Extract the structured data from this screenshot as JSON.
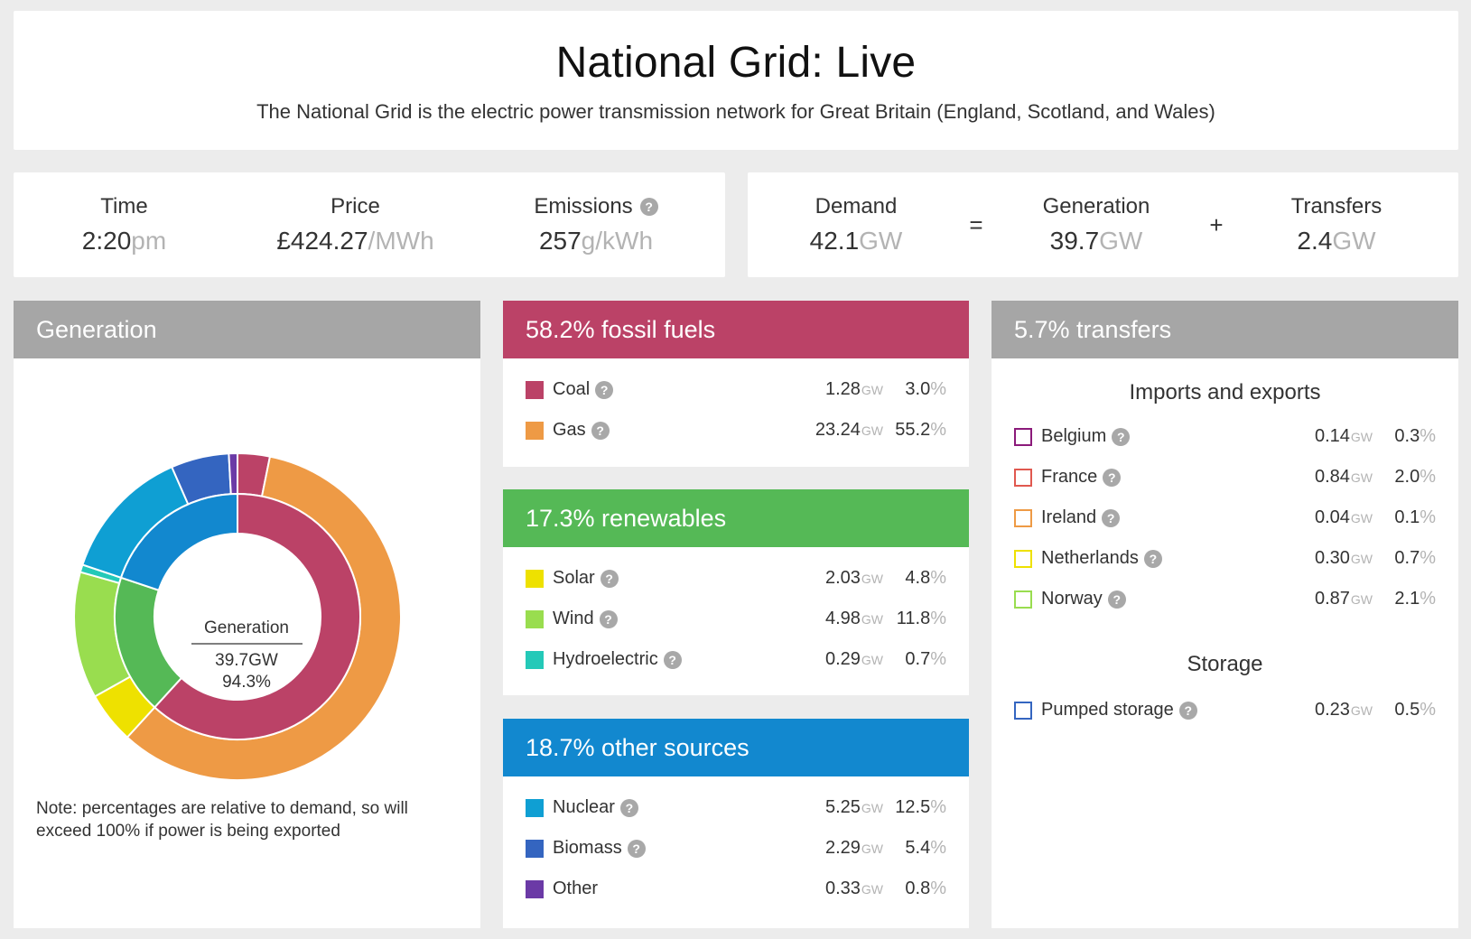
{
  "header": {
    "title": "National Grid: Live",
    "subtitle": "The National Grid is the electric power transmission network for Great Britain (England, Scotland, and Wales)"
  },
  "stats": {
    "time": {
      "label": "Time",
      "value": "2:20",
      "unit": "pm"
    },
    "price": {
      "label": "Price",
      "value": "£424.27",
      "unit": "/MWh"
    },
    "emissions": {
      "label": "Emissions",
      "value": "257",
      "unit": "g/kWh"
    },
    "demand": {
      "label": "Demand",
      "value": "42.1",
      "unit": "GW"
    },
    "generation": {
      "label": "Generation",
      "value": "39.7",
      "unit": "GW"
    },
    "transfers": {
      "label": "Transfers",
      "value": "2.4",
      "unit": "GW"
    },
    "equals": "=",
    "plus": "+"
  },
  "generation_panel": {
    "title": "Generation",
    "center_label": "Generation",
    "center_value": "39.7GW",
    "center_pct": "94.3%",
    "note": "Note: percentages are relative to demand, so will exceed 100% if power is being exported"
  },
  "fossil": {
    "title": "58.2% fossil fuels",
    "items": [
      {
        "name": "Coal",
        "gw": "1.28",
        "pct": "3.0",
        "color": "#bb4267"
      },
      {
        "name": "Gas",
        "gw": "23.24",
        "pct": "55.2",
        "color": "#ee9a45"
      }
    ]
  },
  "renewables": {
    "title": "17.3% renewables",
    "items": [
      {
        "name": "Solar",
        "gw": "2.03",
        "pct": "4.8",
        "color": "#eee100"
      },
      {
        "name": "Wind",
        "gw": "4.98",
        "pct": "11.8",
        "color": "#99dd4f"
      },
      {
        "name": "Hydroelectric",
        "gw": "0.29",
        "pct": "0.7",
        "color": "#24c9b8"
      }
    ]
  },
  "other": {
    "title": "18.7% other sources",
    "items": [
      {
        "name": "Nuclear",
        "gw": "5.25",
        "pct": "12.5",
        "color": "#0f9fd3"
      },
      {
        "name": "Biomass",
        "gw": "2.29",
        "pct": "5.4",
        "color": "#3465c0"
      },
      {
        "name": "Other",
        "gw": "0.33",
        "pct": "0.8",
        "color": "#6b3aa6"
      }
    ]
  },
  "transfers": {
    "title": "5.7% transfers",
    "imports_title": "Imports and exports",
    "imports": [
      {
        "name": "Belgium",
        "gw": "0.14",
        "pct": "0.3",
        "color": "#8b1a7a"
      },
      {
        "name": "France",
        "gw": "0.84",
        "pct": "2.0",
        "color": "#e0584f"
      },
      {
        "name": "Ireland",
        "gw": "0.04",
        "pct": "0.1",
        "color": "#ee9a45"
      },
      {
        "name": "Netherlands",
        "gw": "0.30",
        "pct": "0.7",
        "color": "#eee100"
      },
      {
        "name": "Norway",
        "gw": "0.87",
        "pct": "2.1",
        "color": "#99dd4f"
      }
    ],
    "storage_title": "Storage",
    "storage": [
      {
        "name": "Pumped storage",
        "gw": "0.23",
        "pct": "0.5",
        "color": "#3465c0"
      }
    ]
  },
  "units": {
    "gw": "GW",
    "pct": "%"
  },
  "help_glyph": "?",
  "chart_data": {
    "type": "pie",
    "title": "Generation",
    "inner_ring": [
      {
        "category": "fossil fuels",
        "pct": 58.2,
        "color": "#bb4267"
      },
      {
        "category": "renewables",
        "pct": 17.3,
        "color": "#55b956"
      },
      {
        "category": "other sources",
        "pct": 18.7,
        "color": "#1288cf"
      }
    ],
    "outer_ring": [
      {
        "source": "Coal",
        "pct": 3.0,
        "color": "#bb4267"
      },
      {
        "source": "Gas",
        "pct": 55.2,
        "color": "#ee9a45"
      },
      {
        "source": "Solar",
        "pct": 4.8,
        "color": "#eee100"
      },
      {
        "source": "Wind",
        "pct": 11.8,
        "color": "#99dd4f"
      },
      {
        "source": "Hydroelectric",
        "pct": 0.7,
        "color": "#24c9b8"
      },
      {
        "source": "Nuclear",
        "pct": 12.5,
        "color": "#0f9fd3"
      },
      {
        "source": "Biomass",
        "pct": 5.4,
        "color": "#3465c0"
      },
      {
        "source": "Other",
        "pct": 0.8,
        "color": "#6b3aa6"
      }
    ],
    "center_text": [
      "Generation",
      "39.7GW",
      "94.3%"
    ]
  }
}
